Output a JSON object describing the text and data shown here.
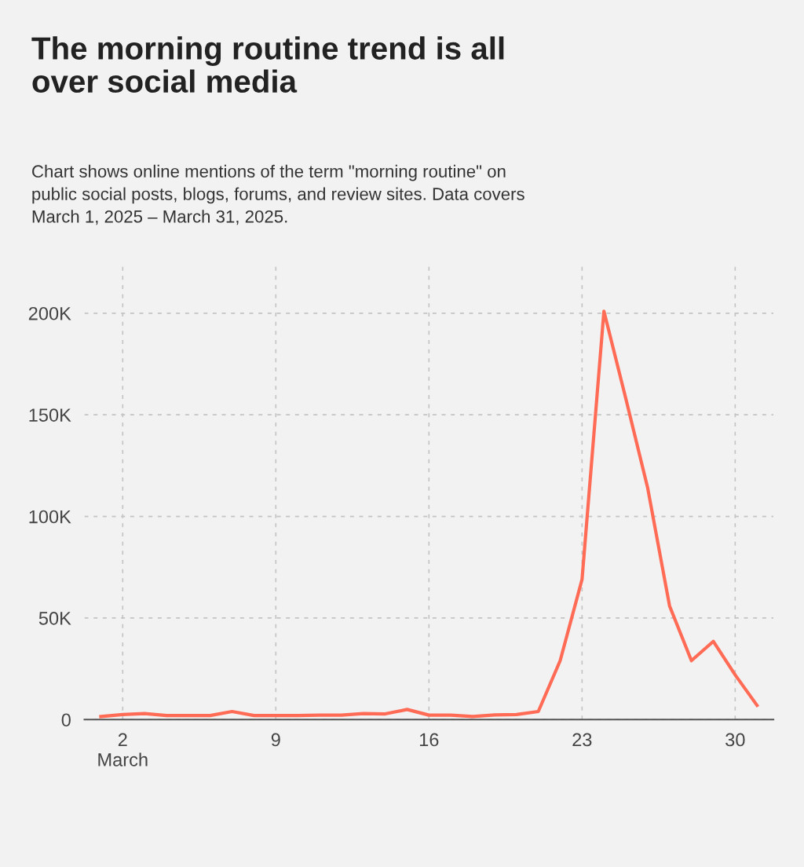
{
  "chart_data": {
    "type": "line",
    "title": "The morning routine trend is all\nover social media",
    "annotations": [
      "Chart shows online mentions of the term \"morning routine\" on\npublic social posts, blogs, forums, and review sites. Data covers\nMarch 1, 2025 – March 31, 2025."
    ],
    "x": [
      1,
      2,
      3,
      4,
      5,
      6,
      7,
      8,
      9,
      10,
      11,
      12,
      13,
      14,
      15,
      16,
      17,
      18,
      19,
      20,
      21,
      22,
      23,
      24,
      25,
      26,
      27,
      28,
      29,
      30,
      31
    ],
    "series": [
      {
        "color": "#ff6b55",
        "values": [
          1500,
          2500,
          3000,
          2000,
          2000,
          2000,
          4000,
          2000,
          2000,
          2000,
          2200,
          2200,
          3000,
          2800,
          5000,
          2200,
          2200,
          1500,
          2300,
          2500,
          4000,
          29000,
          69000,
          201000,
          158000,
          114000,
          56000,
          29000,
          38500,
          22000,
          7000
        ]
      }
    ],
    "xlim": [
      0.25,
      31.75
    ],
    "xticks": [
      {
        "value": 2,
        "label": "2\nMarch"
      },
      9,
      16,
      23,
      30
    ],
    "ylim": [
      0,
      224000
    ],
    "yticks": [
      {
        "value": 0,
        "label": "0"
      },
      {
        "value": 50000,
        "label": "50K"
      },
      {
        "value": 100000,
        "label": "100K"
      },
      {
        "value": 150000,
        "label": "150K"
      },
      {
        "value": 200000,
        "label": "200K"
      }
    ],
    "grid": true,
    "line_style": "solid",
    "marker": "none"
  }
}
